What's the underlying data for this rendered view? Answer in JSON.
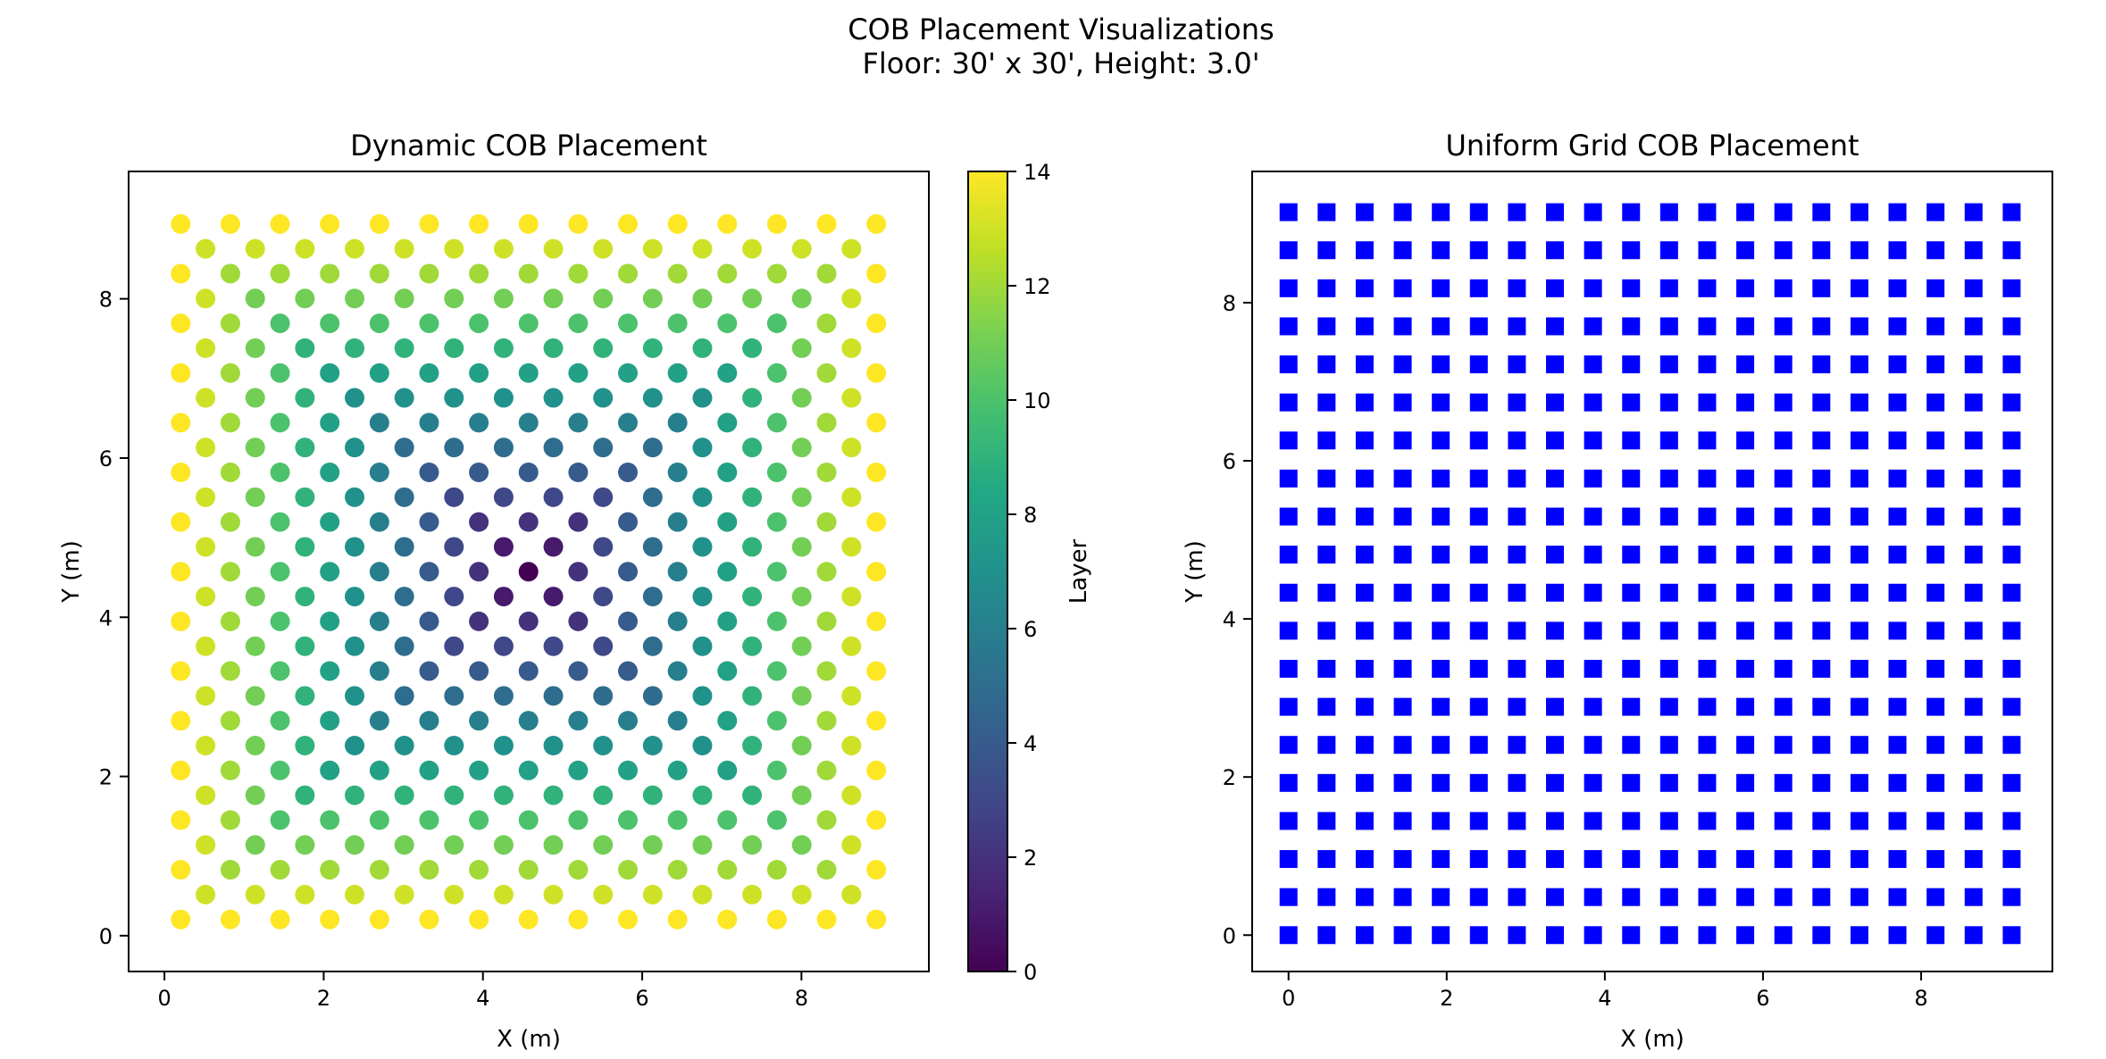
{
  "figure": {
    "suptitle_line1": "COB Placement Visualizations",
    "suptitle_line2": "Floor: 30' x 30', Height: 3.0'"
  },
  "chart_data": [
    {
      "type": "scatter",
      "title": "Dynamic COB Placement",
      "xlabel": "X (m)",
      "ylabel": "Y (m)",
      "xlim": [
        -0.45,
        9.6
      ],
      "ylim": [
        -0.45,
        9.6
      ],
      "xticks": [
        0,
        2,
        4,
        6,
        8
      ],
      "yticks": [
        0,
        2,
        4,
        6,
        8
      ],
      "marker": "circle",
      "layout": "concentric diamond rings around center",
      "center": [
        4.572,
        4.572
      ],
      "ring_spacing": 0.312,
      "layers": 15,
      "point_rule": "points where |i|+|j| <= 14 and i+j even (layer = (|i|+|j|)/... ), plus fill to square bounds",
      "x_positions": [
        0.204,
        0.516,
        0.828,
        1.14,
        1.452,
        1.764,
        2.076,
        2.388,
        2.7,
        3.012,
        3.324,
        3.636,
        3.948,
        4.26,
        4.572,
        4.884,
        5.196,
        5.508,
        5.82,
        6.132,
        6.444,
        6.756,
        7.068,
        7.38,
        7.692,
        8.004,
        8.316,
        8.628,
        8.94
      ],
      "colorbar": {
        "label": "Layer",
        "min": 0,
        "max": 14,
        "ticks": [
          0,
          2,
          4,
          6,
          8,
          10,
          12,
          14
        ],
        "colormap": "viridis"
      }
    },
    {
      "type": "scatter",
      "title": "Uniform Grid COB Placement",
      "xlabel": "X (m)",
      "ylabel": "Y (m)",
      "xlim": [
        -0.46,
        9.66
      ],
      "ylim": [
        -0.46,
        9.66
      ],
      "xticks": [
        0,
        2,
        4,
        6,
        8
      ],
      "yticks": [
        0,
        2,
        4,
        6,
        8
      ],
      "marker": "square",
      "color": "#0000ff",
      "grid_count": 20,
      "grid_start": 0,
      "grid_step": 0.4813
    }
  ]
}
